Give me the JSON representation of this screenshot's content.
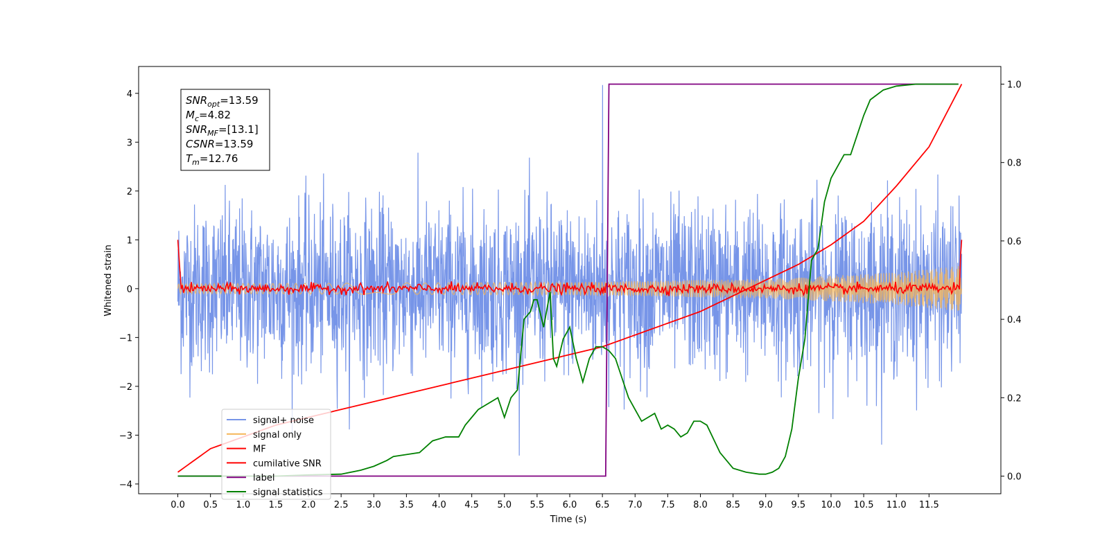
{
  "chart_data": {
    "type": "line",
    "xlabel": "Time (s)",
    "ylabel": "Whitened strain",
    "ylabel_right": "",
    "xlim": [
      -0.6,
      12.6
    ],
    "ylim": [
      -4.2,
      4.55
    ],
    "ylim_right": [
      -0.045,
      1.045
    ],
    "xticks": [
      0.0,
      0.5,
      1.0,
      1.5,
      2.0,
      2.5,
      3.0,
      3.5,
      4.0,
      4.5,
      5.0,
      5.5,
      6.0,
      6.5,
      7.0,
      7.5,
      8.0,
      8.5,
      9.0,
      9.5,
      10.0,
      10.5,
      11.0,
      11.5
    ],
    "xtick_labels": [
      "0.0",
      "0.5",
      "1.0",
      "1.5",
      "2.0",
      "2.5",
      "3.0",
      "3.5",
      "4.0",
      "4.5",
      "5.0",
      "5.5",
      "6.0",
      "6.5",
      "7.0",
      "7.5",
      "8.0",
      "8.5",
      "9.0",
      "9.5",
      "10.0",
      "10.5",
      "11.0",
      "11.5"
    ],
    "yticks": [
      -4,
      -3,
      -2,
      -1,
      0,
      1,
      2,
      3,
      4
    ],
    "ytick_labels": [
      "−4",
      "−3",
      "−2",
      "−1",
      "0",
      "1",
      "2",
      "3",
      "4"
    ],
    "yticks_right": [
      0.0,
      0.2,
      0.4,
      0.6,
      0.8,
      1.0
    ],
    "ytick_labels_right": [
      "0.0",
      "0.2",
      "0.4",
      "0.6",
      "0.8",
      "1.0"
    ],
    "grid": false,
    "legend_placement": "lower-left",
    "annotation": {
      "lines": [
        {
          "sym": "SNR",
          "sub": "opt",
          "val": "=13.59"
        },
        {
          "sym": "M",
          "sub": "c",
          "val": "=4.82"
        },
        {
          "sym": "SNR",
          "sub": "MF",
          "val": "=[13.1]"
        },
        {
          "sym": "CSNR",
          "sub": "",
          "val": "=13.59"
        },
        {
          "sym": "T",
          "sub": "m",
          "val": "=12.76"
        }
      ]
    },
    "series": [
      {
        "name": "signal+ noise",
        "color": "#7795e8",
        "axis": "left",
        "kind": "noise",
        "x_range": [
          0.0,
          12.0
        ],
        "std": 0.85,
        "max": 4.17,
        "min": -3.55
      },
      {
        "name": "signal only",
        "color": "#f5b657",
        "axis": "left",
        "kind": "chirp",
        "envelope": [
          [
            0.0,
            0.1
          ],
          [
            6.0,
            0.13
          ],
          [
            9.0,
            0.2
          ],
          [
            11.0,
            0.33
          ],
          [
            12.0,
            0.47
          ]
        ]
      },
      {
        "name": "MF",
        "color": "#ff0000",
        "axis": "left",
        "kind": "mf",
        "x_range": [
          0.0,
          12.0
        ],
        "edge_value": 1.0,
        "std": 0.05
      },
      {
        "name": "cumilative SNR",
        "color": "#ff0000",
        "axis": "right",
        "x": [
          0.0,
          0.5,
          1.0,
          1.5,
          2.0,
          2.5,
          3.0,
          3.5,
          4.0,
          4.5,
          5.0,
          5.5,
          6.0,
          6.5,
          7.0,
          7.5,
          8.0,
          8.5,
          9.0,
          9.5,
          10.0,
          10.5,
          11.0,
          11.5,
          12.0
        ],
        "values": [
          0.01,
          0.07,
          0.1,
          0.13,
          0.15,
          0.17,
          0.19,
          0.21,
          0.23,
          0.25,
          0.27,
          0.29,
          0.31,
          0.33,
          0.36,
          0.39,
          0.42,
          0.46,
          0.5,
          0.54,
          0.59,
          0.65,
          0.74,
          0.84,
          1.0
        ]
      },
      {
        "name": "label",
        "color": "#800080",
        "axis": "right",
        "x": [
          0.0,
          6.55,
          6.6,
          11.95
        ],
        "values": [
          0.0,
          0.0,
          1.0,
          1.0
        ]
      },
      {
        "name": "signal statistics",
        "color": "#008000",
        "axis": "right",
        "x": [
          0.0,
          0.5,
          1.0,
          1.5,
          2.0,
          2.5,
          2.8,
          3.0,
          3.2,
          3.3,
          3.5,
          3.7,
          3.9,
          4.1,
          4.3,
          4.4,
          4.5,
          4.6,
          4.7,
          4.9,
          5.0,
          5.1,
          5.2,
          5.3,
          5.4,
          5.45,
          5.5,
          5.6,
          5.7,
          5.75,
          5.8,
          5.9,
          6.0,
          6.1,
          6.2,
          6.3,
          6.4,
          6.5,
          6.6,
          6.7,
          6.8,
          6.9,
          7.0,
          7.1,
          7.2,
          7.3,
          7.4,
          7.5,
          7.6,
          7.7,
          7.8,
          7.9,
          8.0,
          8.1,
          8.3,
          8.5,
          8.7,
          8.9,
          9.0,
          9.1,
          9.2,
          9.3,
          9.4,
          9.5,
          9.6,
          9.7,
          9.8,
          9.9,
          10.0,
          10.1,
          10.2,
          10.3,
          10.4,
          10.5,
          10.6,
          10.8,
          11.0,
          11.3,
          11.6,
          11.95
        ],
        "values": [
          0.0,
          0.0,
          0.0,
          0.0,
          0.003,
          0.005,
          0.015,
          0.025,
          0.04,
          0.05,
          0.055,
          0.06,
          0.09,
          0.1,
          0.1,
          0.13,
          0.15,
          0.17,
          0.18,
          0.2,
          0.15,
          0.2,
          0.22,
          0.4,
          0.42,
          0.45,
          0.45,
          0.38,
          0.47,
          0.3,
          0.28,
          0.35,
          0.38,
          0.3,
          0.24,
          0.3,
          0.33,
          0.33,
          0.32,
          0.3,
          0.25,
          0.2,
          0.17,
          0.14,
          0.15,
          0.16,
          0.12,
          0.13,
          0.12,
          0.1,
          0.11,
          0.14,
          0.14,
          0.13,
          0.06,
          0.02,
          0.01,
          0.005,
          0.005,
          0.01,
          0.02,
          0.05,
          0.12,
          0.25,
          0.35,
          0.55,
          0.58,
          0.7,
          0.76,
          0.79,
          0.82,
          0.82,
          0.87,
          0.92,
          0.96,
          0.985,
          0.995,
          1.0,
          1.0,
          1.0
        ]
      }
    ]
  }
}
